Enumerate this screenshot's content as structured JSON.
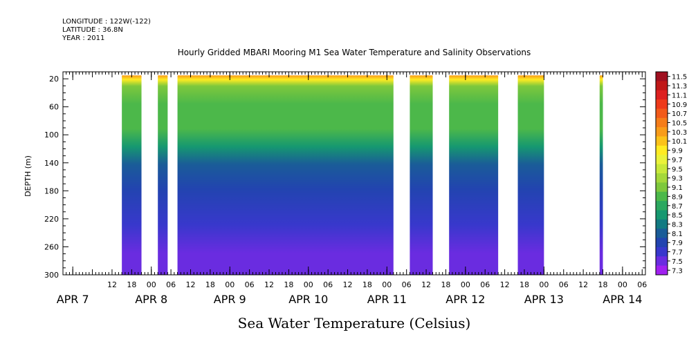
{
  "header": {
    "longitude": "LONGITUDE : 122W(-122)",
    "latitude": "LATITUDE : 36.8N",
    "year": "YEAR : 2011"
  },
  "chart_data": {
    "type": "heatmap",
    "title": "Hourly Gridded MBARI Mooring M1 Sea Water Temperature and Salinity Observations",
    "xlabel": "Sea Water Temperature (Celsius)",
    "ylabel": "DEPTH (m)",
    "y_ticks": [
      "20",
      "60",
      "100",
      "140",
      "180",
      "220",
      "260",
      "300"
    ],
    "y_values": [
      20,
      60,
      100,
      140,
      180,
      220,
      260,
      300
    ],
    "ylim": [
      300,
      10
    ],
    "y_inverted": true,
    "x_hour_ticks": [
      "12",
      "18",
      "00",
      "06",
      "12",
      "18",
      "00",
      "06",
      "12",
      "18",
      "00",
      "06",
      "12",
      "18",
      "00",
      "06",
      "12",
      "18",
      "00",
      "06",
      "12",
      "18",
      "00",
      "06",
      "12",
      "18",
      "00",
      "06"
    ],
    "x_hours": [
      12,
      18,
      24,
      30,
      36,
      42,
      48,
      54,
      60,
      66,
      72,
      78,
      84,
      90,
      96,
      102,
      108,
      114,
      120,
      126,
      132,
      138,
      144,
      150,
      156,
      162,
      168,
      174
    ],
    "x_day_labels": [
      "APR  7",
      "APR  8",
      "APR  9",
      "APR 10",
      "APR 11",
      "APR 12",
      "APR 13",
      "APR 14"
    ],
    "x_day_hours": [
      0,
      24,
      48,
      72,
      96,
      120,
      144,
      168
    ],
    "xlim_hours": [
      -3,
      175
    ],
    "data_segments_hours": [
      [
        15,
        21
      ],
      [
        26,
        29
      ],
      [
        32,
        98
      ],
      [
        103,
        110
      ],
      [
        115,
        130
      ],
      [
        136,
        144
      ],
      [
        161,
        162
      ]
    ],
    "colorbar": {
      "labels": [
        "11.5",
        "11.3",
        "11.1",
        "10.9",
        "10.7",
        "10.5",
        "10.3",
        "10.1",
        "9.9",
        "9.7",
        "9.5",
        "9.3",
        "9.1",
        "8.9",
        "8.7",
        "8.5",
        "8.3",
        "8.1",
        "7.9",
        "7.7",
        "7.5",
        "7.3"
      ],
      "colors": [
        "#a01020",
        "#c01818",
        "#dd2020",
        "#ee3a1a",
        "#f25a1a",
        "#f57d1a",
        "#f89c1a",
        "#fbc21a",
        "#ffeb22",
        "#eaf23a",
        "#c8e83a",
        "#a4d83a",
        "#7ec83c",
        "#4cb84a",
        "#2ca860",
        "#169870",
        "#127a82",
        "#1a5c98",
        "#2244b0",
        "#3838cc",
        "#6a2ce0",
        "#a020f0"
      ]
    },
    "profile": [
      {
        "depth": 20,
        "value": 10.3
      },
      {
        "depth": 26,
        "value": 9.8
      },
      {
        "depth": 35,
        "value": 9.2
      },
      {
        "depth": 60,
        "value": 9.0
      },
      {
        "depth": 95,
        "value": 8.8
      },
      {
        "depth": 120,
        "value": 8.5
      },
      {
        "depth": 145,
        "value": 8.1
      },
      {
        "depth": 180,
        "value": 7.9
      },
      {
        "depth": 230,
        "value": 7.75
      },
      {
        "depth": 270,
        "value": 7.6
      },
      {
        "depth": 300,
        "value": 7.5
      }
    ]
  }
}
